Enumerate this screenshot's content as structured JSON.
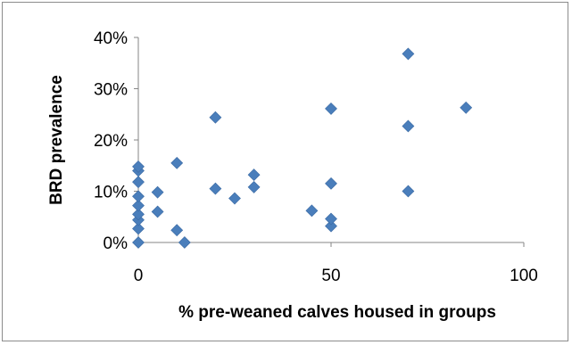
{
  "chart_data": {
    "type": "scatter",
    "xlabel": "% pre-weaned calves housed in groups",
    "ylabel": "BRD prevalence",
    "xlim": [
      0,
      100
    ],
    "ylim": [
      0,
      0.4
    ],
    "x_ticks": [
      0,
      50,
      100
    ],
    "y_ticks": [
      0,
      0.1,
      0.2,
      0.3,
      0.4
    ],
    "x_tick_labels": [
      "0",
      "50",
      "100"
    ],
    "y_tick_labels": [
      "0%",
      "10%",
      "20%",
      "30%",
      "40%"
    ],
    "grid": false,
    "legend": false,
    "marker": "diamond",
    "colors": {
      "marker": "#4a7ebb",
      "marker_edge": "#3b6aa3",
      "axis": "#868686"
    },
    "points": [
      {
        "x": 0,
        "y": 0.0
      },
      {
        "x": 0,
        "y": 0.027
      },
      {
        "x": 0,
        "y": 0.044
      },
      {
        "x": 0,
        "y": 0.055
      },
      {
        "x": 0,
        "y": 0.072
      },
      {
        "x": 0,
        "y": 0.09
      },
      {
        "x": 0,
        "y": 0.118
      },
      {
        "x": 0,
        "y": 0.14
      },
      {
        "x": 0,
        "y": 0.148
      },
      {
        "x": 5,
        "y": 0.06
      },
      {
        "x": 5,
        "y": 0.098
      },
      {
        "x": 10,
        "y": 0.024
      },
      {
        "x": 10,
        "y": 0.155
      },
      {
        "x": 12,
        "y": 0.0
      },
      {
        "x": 20,
        "y": 0.105
      },
      {
        "x": 20,
        "y": 0.244
      },
      {
        "x": 25,
        "y": 0.086
      },
      {
        "x": 30,
        "y": 0.108
      },
      {
        "x": 30,
        "y": 0.132
      },
      {
        "x": 45,
        "y": 0.062
      },
      {
        "x": 50,
        "y": 0.032
      },
      {
        "x": 50,
        "y": 0.046
      },
      {
        "x": 50,
        "y": 0.115
      },
      {
        "x": 50,
        "y": 0.261
      },
      {
        "x": 70,
        "y": 0.1
      },
      {
        "x": 70,
        "y": 0.227
      },
      {
        "x": 70,
        "y": 0.368
      },
      {
        "x": 85,
        "y": 0.263
      }
    ]
  }
}
